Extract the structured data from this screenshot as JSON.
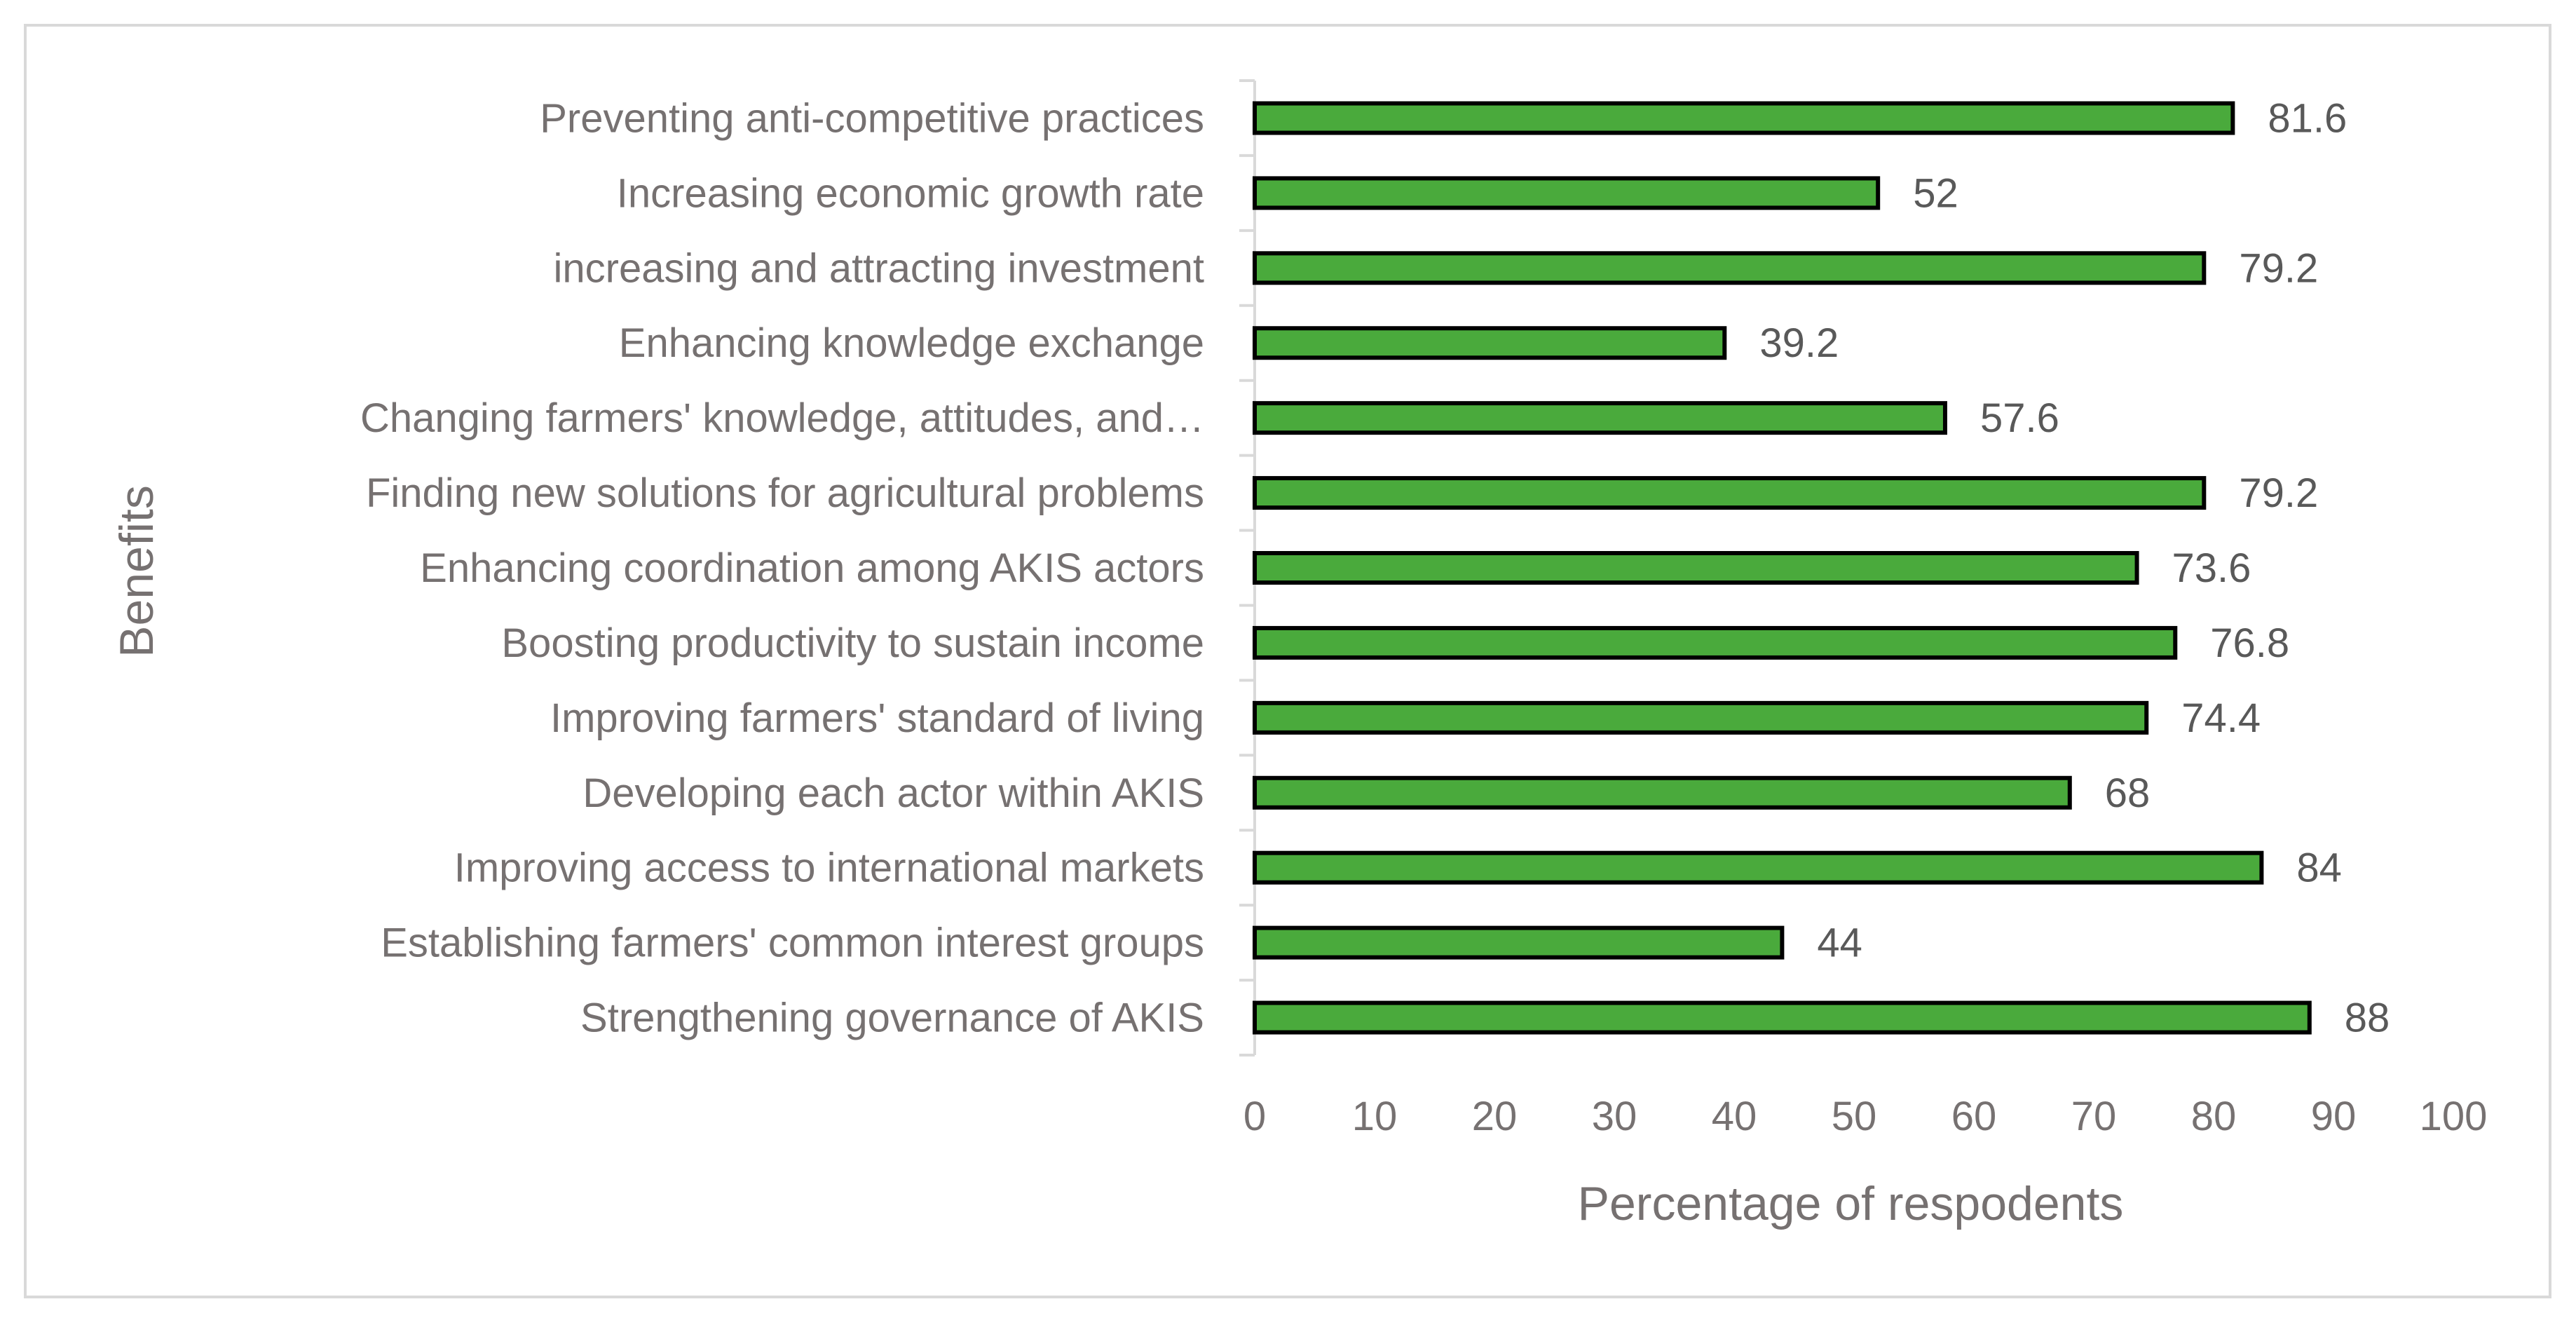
{
  "chart_data": {
    "type": "bar",
    "orientation": "horizontal",
    "categories": [
      "Preventing anti-competitive practices",
      "Increasing economic growth rate",
      "increasing and attracting  investment",
      "Enhancing knowledge exchange",
      "Changing farmers' knowledge, attitudes, and…",
      "Finding new solutions for agricultural problems",
      "Enhancing coordination among AKIS actors",
      "Boosting productivity to sustain income",
      "Improving farmers' standard of living",
      "Developing each actor within AKIS",
      "Improving access to international markets",
      "Establishing farmers' common interest groups",
      "Strengthening governance of AKIS"
    ],
    "values": [
      81.6,
      52,
      79.2,
      39.2,
      57.6,
      79.2,
      73.6,
      76.8,
      74.4,
      68,
      84,
      44,
      88
    ],
    "data_labels": [
      "81.6",
      "52",
      "79.2",
      "39.2",
      "57.6",
      "79.2",
      "73.6",
      "76.8",
      "74.4",
      "68",
      "84",
      "44",
      "88"
    ],
    "xlabel": "Percentage of respodents",
    "ylabel": "Benefits",
    "xlim": [
      0,
      100
    ],
    "xticks": [
      0,
      10,
      20,
      30,
      40,
      50,
      60,
      70,
      80,
      90,
      100
    ],
    "grid": false,
    "legend": "none",
    "colors": {
      "bar_fill": "#4aaa3c",
      "bar_stroke": "#000000",
      "axis_line": "#d9d9d9",
      "text": "#767171",
      "data_label": "#595959"
    }
  }
}
